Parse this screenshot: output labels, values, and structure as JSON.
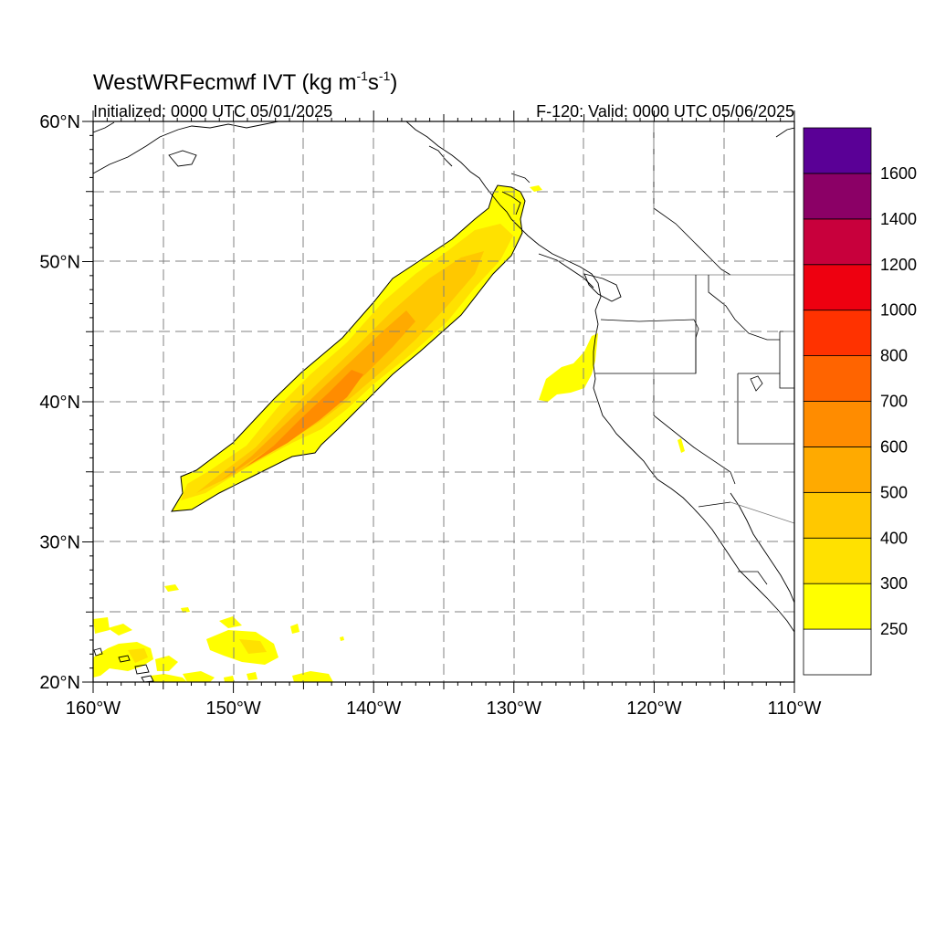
{
  "title": {
    "main": "WestWRFecmwf IVT (kg m",
    "exp1": "-1",
    "mid": "s",
    "exp2": "-1",
    "close": ")"
  },
  "subtitle": {
    "left": "Initialized: 0000 UTC 05/01/2025",
    "right": "F-120: Valid: 0000 UTC 05/06/2025"
  },
  "axes": {
    "lon_range": [
      -160,
      -110
    ],
    "lat_range": [
      20,
      60
    ],
    "grid": "dashed every 5 degrees",
    "lon_ticks": [
      {
        "value": -160,
        "label": "160°W"
      },
      {
        "value": -150,
        "label": "150°W"
      },
      {
        "value": -140,
        "label": "140°W"
      },
      {
        "value": -130,
        "label": "130°W"
      },
      {
        "value": -120,
        "label": "120°W"
      },
      {
        "value": -110,
        "label": "110°W"
      }
    ],
    "lat_ticks": [
      {
        "value": 60,
        "label": "60°N"
      },
      {
        "value": 50,
        "label": "50°N"
      },
      {
        "value": 40,
        "label": "40°N"
      },
      {
        "value": 30,
        "label": "30°N"
      },
      {
        "value": 20,
        "label": "20°N"
      }
    ]
  },
  "colorbar": {
    "labels": [
      "250",
      "300",
      "400",
      "500",
      "600",
      "700",
      "800",
      "1000",
      "1200",
      "1400",
      "1600"
    ],
    "colors": [
      "#ffffff",
      "#ffff00",
      "#ffe100",
      "#ffc800",
      "#ffaa00",
      "#ff8c00",
      "#ff6400",
      "#ff3200",
      "#ee0010",
      "#c8003c",
      "#8b0066",
      "#5a0096"
    ]
  },
  "chart_data": {
    "type": "heatmap",
    "variable": "IVT",
    "units": "kg m-1 s-1",
    "thresholds": [
      250,
      300,
      400,
      500,
      600,
      700,
      800,
      1000,
      1200,
      1400,
      1600
    ],
    "features": [
      {
        "region": "atmospheric river core",
        "from_lon": -154,
        "from_lat": 32.5,
        "to_lon": -130,
        "to_lat": 55,
        "max_ivt_bin": "600-700"
      },
      {
        "region": "off northern California coast",
        "center_lon": -126,
        "center_lat": 42,
        "ivt_bin": "250-300"
      },
      {
        "region": "subtropical patches",
        "center_lon": -152,
        "center_lat": 22,
        "ivt_bin": "250-300"
      }
    ]
  }
}
